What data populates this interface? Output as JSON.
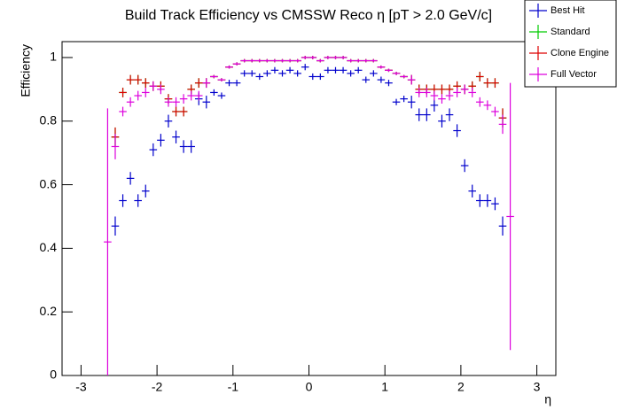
{
  "chart_data": {
    "type": "errorbar",
    "title": "Build Track Efficiency vs CMSSW Reco η [pT > 2.0 GeV/c]",
    "x_label": "η",
    "y_label": "Efficiency",
    "x": [
      -2.65,
      -2.55,
      -2.45,
      -2.35,
      -2.25,
      -2.15,
      -2.05,
      -1.95,
      -1.85,
      -1.75,
      -1.65,
      -1.55,
      -1.45,
      -1.35,
      -1.25,
      -1.15,
      -1.05,
      -0.95,
      -0.85,
      -0.75,
      -0.65,
      -0.55,
      -0.45,
      -0.35,
      -0.25,
      -0.15,
      -0.05,
      0.05,
      0.15,
      0.25,
      0.35,
      0.45,
      0.55,
      0.65,
      0.75,
      0.85,
      0.95,
      1.05,
      1.15,
      1.25,
      1.35,
      1.45,
      1.55,
      1.65,
      1.75,
      1.85,
      1.95,
      2.05,
      2.15,
      2.25,
      2.35,
      2.45,
      2.55,
      2.65
    ],
    "series": [
      {
        "name": "Best Hit",
        "color": "#0000cc",
        "values": [
          null,
          0.47,
          0.55,
          0.62,
          0.55,
          0.58,
          0.71,
          0.74,
          0.8,
          0.75,
          0.72,
          0.72,
          0.87,
          0.86,
          0.89,
          0.88,
          0.92,
          0.92,
          0.95,
          0.95,
          0.94,
          0.95,
          0.96,
          0.95,
          0.96,
          0.95,
          0.97,
          0.94,
          0.94,
          0.96,
          0.96,
          0.96,
          0.95,
          0.96,
          0.93,
          0.95,
          0.93,
          0.92,
          0.86,
          0.87,
          0.86,
          0.82,
          0.82,
          0.85,
          0.8,
          0.82,
          0.77,
          0.66,
          0.58,
          0.55,
          0.55,
          0.54,
          0.47,
          null
        ],
        "errors": [
          null,
          0.03,
          0.02,
          0.02,
          0.02,
          0.02,
          0.02,
          0.02,
          0.02,
          0.02,
          0.02,
          0.02,
          0.02,
          0.02,
          0.01,
          0.01,
          0.01,
          0.01,
          0.01,
          0.01,
          0.01,
          0.01,
          0.01,
          0.01,
          0.01,
          0.01,
          0.01,
          0.01,
          0.01,
          0.01,
          0.01,
          0.01,
          0.01,
          0.01,
          0.01,
          0.01,
          0.01,
          0.01,
          0.01,
          0.01,
          0.02,
          0.02,
          0.02,
          0.02,
          0.02,
          0.02,
          0.02,
          0.02,
          0.02,
          0.02,
          0.02,
          0.02,
          0.03,
          null
        ]
      },
      {
        "name": "Standard",
        "color": "#00cc00",
        "values": [
          null,
          0.75,
          0.89,
          0.93,
          0.93,
          0.92,
          0.91,
          0.91,
          0.87,
          0.83,
          0.83,
          0.9,
          0.92,
          0.92,
          0.94,
          0.93,
          0.97,
          0.98,
          0.99,
          0.99,
          0.99,
          0.99,
          0.99,
          0.99,
          0.99,
          0.99,
          1.0,
          1.0,
          0.99,
          1.0,
          1.0,
          1.0,
          0.99,
          0.99,
          0.99,
          0.99,
          0.97,
          0.96,
          0.95,
          0.94,
          0.93,
          0.9,
          0.9,
          0.9,
          0.9,
          0.9,
          0.91,
          0.9,
          0.91,
          0.94,
          0.92,
          0.92,
          0.81,
          null
        ],
        "errors": [
          null,
          0.03,
          0.015,
          0.015,
          0.015,
          0.015,
          0.015,
          0.015,
          0.015,
          0.015,
          0.015,
          0.015,
          0.015,
          0.015,
          0.005,
          0.005,
          0.005,
          0.005,
          0.005,
          0.005,
          0.005,
          0.005,
          0.005,
          0.005,
          0.005,
          0.005,
          0.005,
          0.005,
          0.005,
          0.005,
          0.005,
          0.005,
          0.005,
          0.005,
          0.005,
          0.005,
          0.005,
          0.005,
          0.005,
          0.005,
          0.015,
          0.015,
          0.015,
          0.015,
          0.015,
          0.015,
          0.015,
          0.015,
          0.015,
          0.015,
          0.015,
          0.015,
          0.03,
          null
        ]
      },
      {
        "name": "Clone Engine",
        "color": "#dd0000",
        "values": [
          null,
          0.75,
          0.89,
          0.93,
          0.93,
          0.92,
          0.91,
          0.91,
          0.87,
          0.83,
          0.83,
          0.9,
          0.92,
          0.92,
          0.94,
          0.93,
          0.97,
          0.98,
          0.99,
          0.99,
          0.99,
          0.99,
          0.99,
          0.99,
          0.99,
          0.99,
          1.0,
          1.0,
          0.99,
          1.0,
          1.0,
          1.0,
          0.99,
          0.99,
          0.99,
          0.99,
          0.97,
          0.96,
          0.95,
          0.94,
          0.93,
          0.9,
          0.9,
          0.9,
          0.9,
          0.9,
          0.91,
          0.9,
          0.91,
          0.94,
          0.92,
          0.92,
          0.81,
          null
        ],
        "errors": [
          null,
          0.03,
          0.015,
          0.015,
          0.015,
          0.015,
          0.015,
          0.015,
          0.015,
          0.015,
          0.015,
          0.015,
          0.015,
          0.015,
          0.005,
          0.005,
          0.005,
          0.005,
          0.005,
          0.005,
          0.005,
          0.005,
          0.005,
          0.005,
          0.005,
          0.005,
          0.005,
          0.005,
          0.005,
          0.005,
          0.005,
          0.005,
          0.005,
          0.005,
          0.005,
          0.005,
          0.005,
          0.005,
          0.005,
          0.005,
          0.015,
          0.015,
          0.015,
          0.015,
          0.015,
          0.015,
          0.015,
          0.015,
          0.015,
          0.015,
          0.015,
          0.015,
          0.03,
          null
        ]
      },
      {
        "name": "Full Vector",
        "color": "#dd00dd",
        "values": [
          0.42,
          0.72,
          0.83,
          0.86,
          0.88,
          0.89,
          0.91,
          0.9,
          0.86,
          0.86,
          0.87,
          0.88,
          0.88,
          0.92,
          0.94,
          0.93,
          0.97,
          0.98,
          0.99,
          0.99,
          0.99,
          0.99,
          0.99,
          0.99,
          0.99,
          0.99,
          1.0,
          1.0,
          0.99,
          1.0,
          1.0,
          1.0,
          0.99,
          0.99,
          0.99,
          0.99,
          0.97,
          0.96,
          0.95,
          0.94,
          0.93,
          0.89,
          0.89,
          0.88,
          0.87,
          0.88,
          0.89,
          0.9,
          0.89,
          0.86,
          0.85,
          0.83,
          0.79,
          0.5
        ],
        "errors": [
          0.42,
          0.04,
          0.015,
          0.015,
          0.015,
          0.015,
          0.015,
          0.015,
          0.015,
          0.015,
          0.015,
          0.015,
          0.015,
          0.015,
          0.005,
          0.005,
          0.005,
          0.005,
          0.005,
          0.005,
          0.005,
          0.005,
          0.005,
          0.005,
          0.005,
          0.005,
          0.005,
          0.005,
          0.005,
          0.005,
          0.005,
          0.005,
          0.005,
          0.005,
          0.005,
          0.005,
          0.005,
          0.005,
          0.005,
          0.005,
          0.015,
          0.015,
          0.015,
          0.015,
          0.015,
          0.015,
          0.015,
          0.015,
          0.015,
          0.015,
          0.015,
          0.015,
          0.03,
          0.42
        ]
      }
    ],
    "xlim": [
      -3.25,
      3.25
    ],
    "ylim": [
      0,
      1.05
    ],
    "xticks": [
      -3,
      -2,
      -1,
      0,
      1,
      2,
      3
    ],
    "yticks": [
      0,
      0.2,
      0.4,
      0.6,
      0.8,
      1
    ]
  }
}
